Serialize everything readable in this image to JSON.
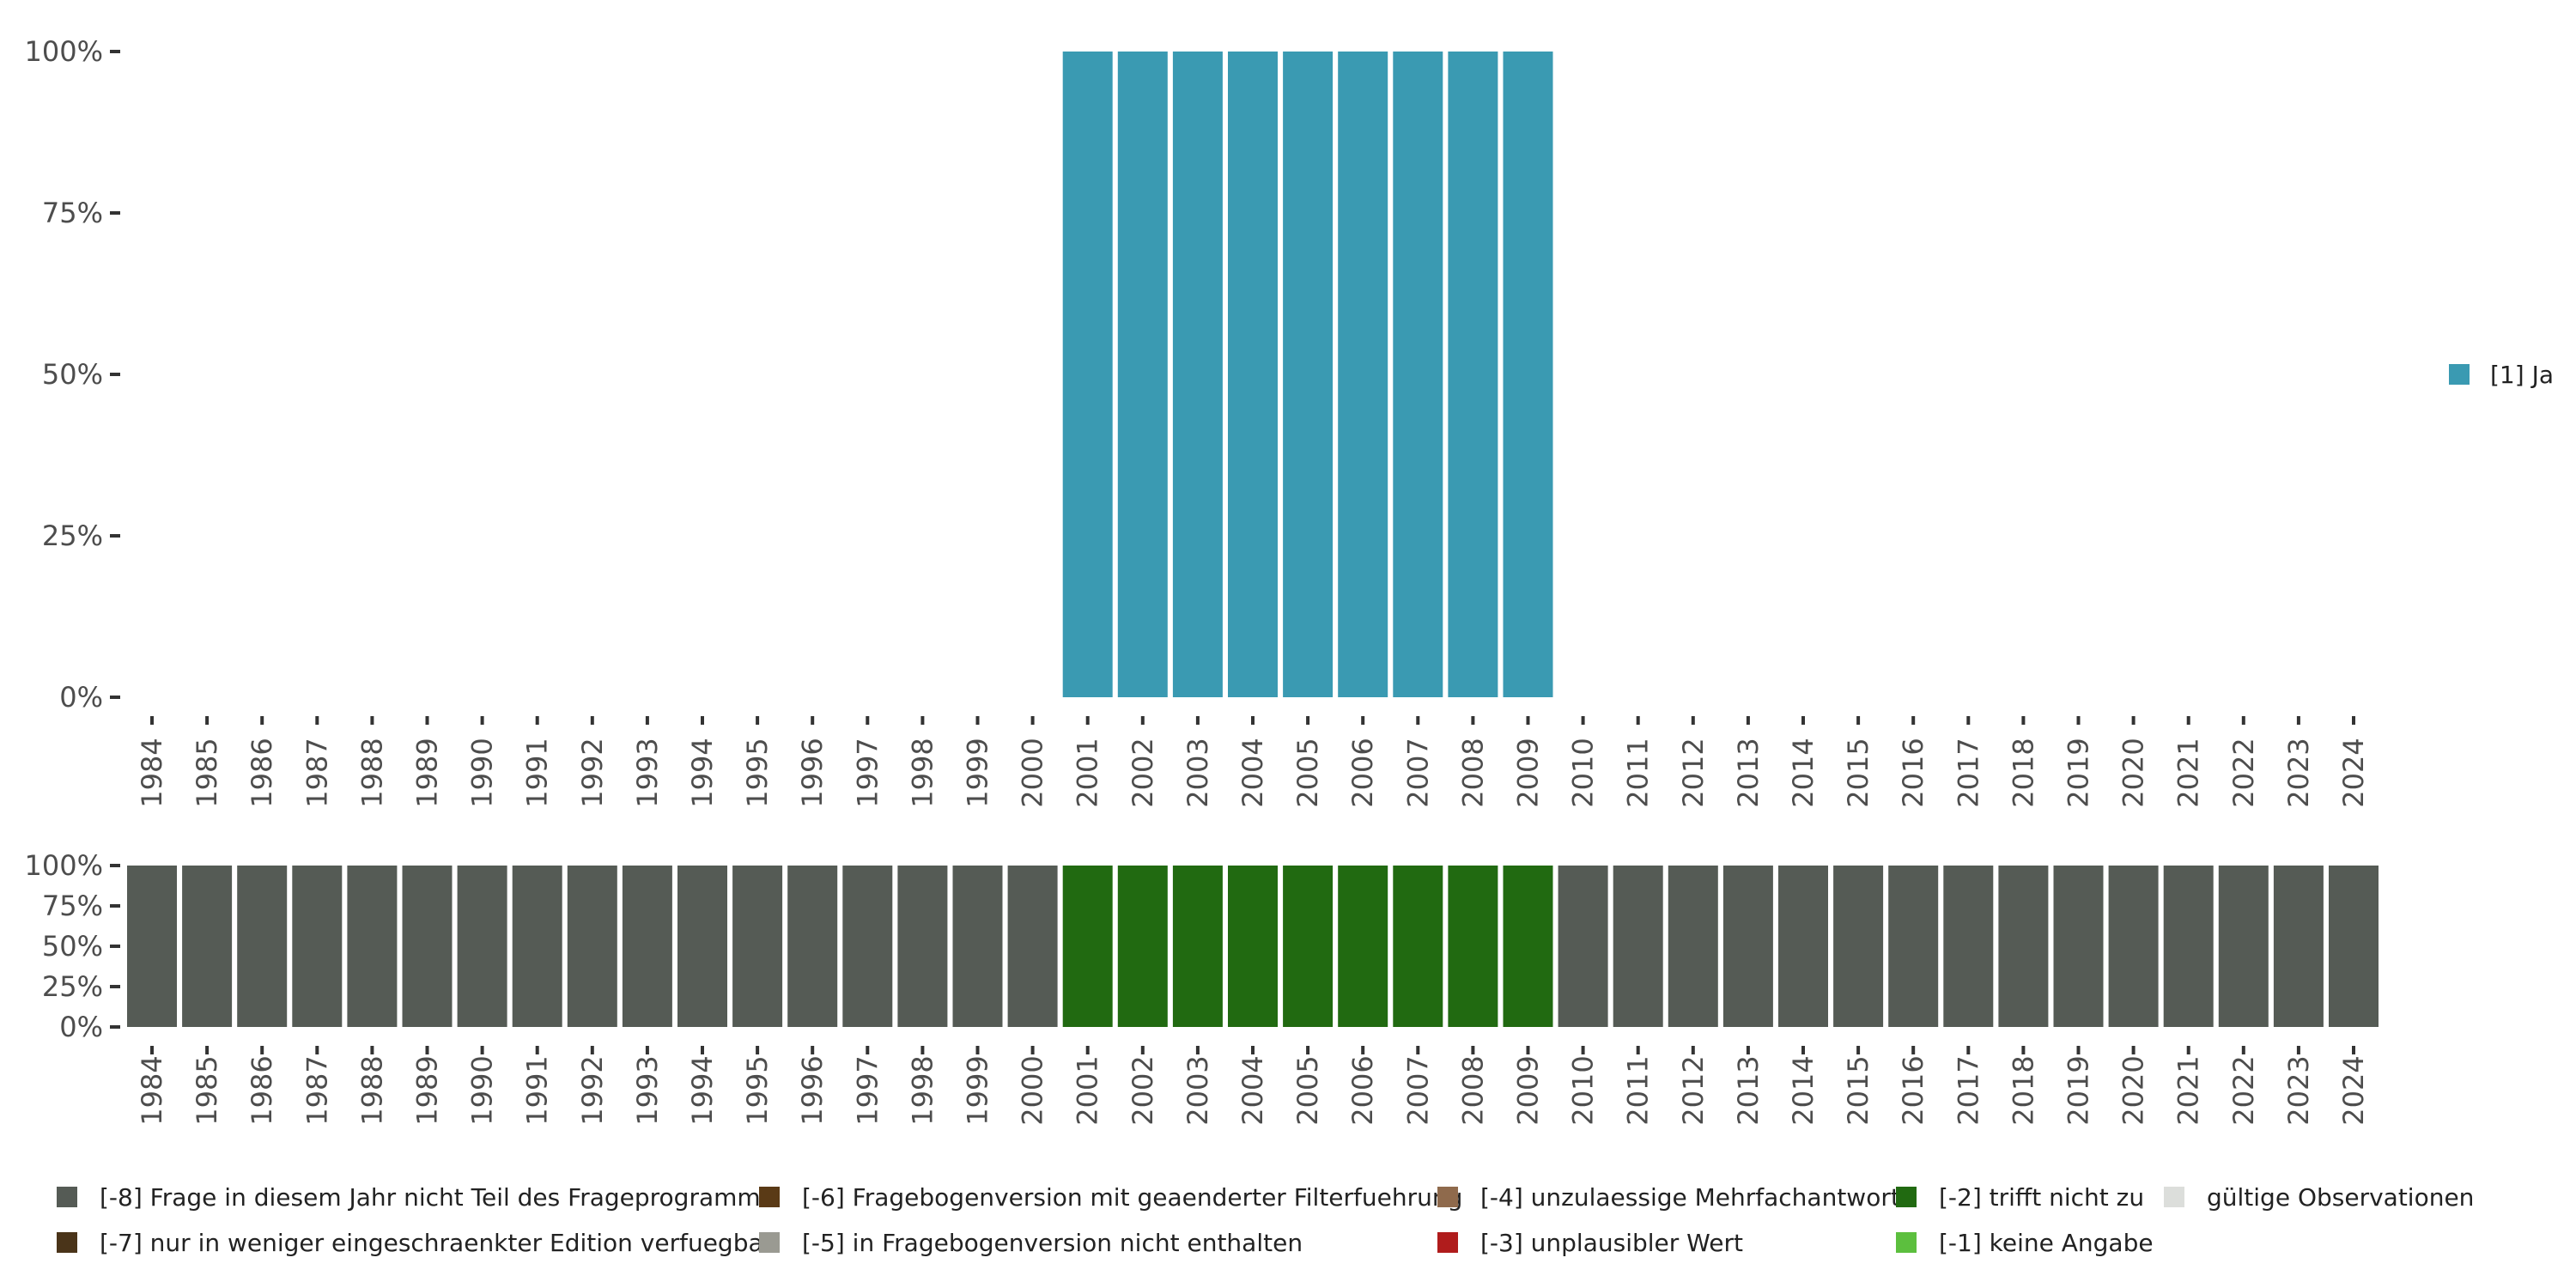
{
  "chart_data": [
    {
      "type": "bar",
      "stacked": true,
      "title": "",
      "xlabel": "",
      "ylabel": "",
      "ylim": [
        0,
        100
      ],
      "y_ticks": [
        "0%",
        "25%",
        "50%",
        "75%",
        "100%"
      ],
      "categories": [
        "1984",
        "1985",
        "1986",
        "1987",
        "1988",
        "1989",
        "1990",
        "1991",
        "1992",
        "1993",
        "1994",
        "1995",
        "1996",
        "1997",
        "1998",
        "1999",
        "2000",
        "2001",
        "2002",
        "2003",
        "2004",
        "2005",
        "2006",
        "2007",
        "2008",
        "2009",
        "2010",
        "2011",
        "2012",
        "2013",
        "2014",
        "2015",
        "2016",
        "2017",
        "2018",
        "2019",
        "2020",
        "2021",
        "2022",
        "2023",
        "2024"
      ],
      "series": [
        {
          "name": "[1] Ja",
          "color": "#3a9ab2",
          "values": [
            null,
            null,
            null,
            null,
            null,
            null,
            null,
            null,
            null,
            null,
            null,
            null,
            null,
            null,
            null,
            null,
            null,
            100,
            100,
            100,
            100,
            100,
            100,
            100,
            100,
            100,
            null,
            null,
            null,
            null,
            null,
            null,
            null,
            null,
            null,
            null,
            null,
            null,
            null,
            null,
            null
          ]
        }
      ],
      "legend": {
        "position": "right",
        "items": [
          {
            "label": "[1] Ja",
            "color": "#3a9ab2"
          }
        ]
      },
      "grid": false
    },
    {
      "type": "bar",
      "stacked": true,
      "title": "",
      "xlabel": "",
      "ylabel": "",
      "ylim": [
        0,
        100
      ],
      "y_ticks": [
        "0%",
        "25%",
        "50%",
        "75%",
        "100%"
      ],
      "categories": [
        "1984",
        "1985",
        "1986",
        "1987",
        "1988",
        "1989",
        "1990",
        "1991",
        "1992",
        "1993",
        "1994",
        "1995",
        "1996",
        "1997",
        "1998",
        "1999",
        "2000",
        "2001",
        "2002",
        "2003",
        "2004",
        "2005",
        "2006",
        "2007",
        "2008",
        "2009",
        "2010",
        "2011",
        "2012",
        "2013",
        "2014",
        "2015",
        "2016",
        "2017",
        "2018",
        "2019",
        "2020",
        "2021",
        "2022",
        "2023",
        "2024"
      ],
      "series": [
        {
          "name": "[-8] Frage in diesem Jahr nicht Teil des Frageprogramms",
          "color": "#555b55",
          "values": [
            100,
            100,
            100,
            100,
            100,
            100,
            100,
            100,
            100,
            100,
            100,
            100,
            100,
            100,
            100,
            100,
            100,
            0,
            0,
            0,
            0,
            0,
            0,
            0,
            0,
            0,
            100,
            100,
            100,
            100,
            100,
            100,
            100,
            100,
            100,
            100,
            100,
            100,
            100,
            100,
            100
          ]
        },
        {
          "name": "[-2] trifft nicht zu",
          "color": "#216a11",
          "values": [
            0,
            0,
            0,
            0,
            0,
            0,
            0,
            0,
            0,
            0,
            0,
            0,
            0,
            0,
            0,
            0,
            0,
            100,
            100,
            100,
            100,
            100,
            100,
            100,
            100,
            100,
            0,
            0,
            0,
            0,
            0,
            0,
            0,
            0,
            0,
            0,
            0,
            0,
            0,
            0,
            0
          ]
        }
      ],
      "legend": {
        "position": "bottom",
        "items": [
          {
            "label": "[-8] Frage in diesem Jahr nicht Teil des Frageprogramms",
            "color": "#555b55"
          },
          {
            "label": "[-7] nur in weniger eingeschraenkter Edition verfuegbar",
            "color": "#4a3419"
          },
          {
            "label": "[-6] Fragebogenversion mit geaenderter Filterfuehrung",
            "color": "#5a3a16"
          },
          {
            "label": "[-5] in Fragebogenversion nicht enthalten",
            "color": "#9a9a92"
          },
          {
            "label": "[-4] unzulaessige Mehrfachantwort",
            "color": "#8f6a4c"
          },
          {
            "label": "[-3] unplausibler Wert",
            "color": "#b01c1c"
          },
          {
            "label": "[-2] trifft nicht zu",
            "color": "#216a11"
          },
          {
            "label": "[-1] keine Angabe",
            "color": "#5cbf3e"
          },
          {
            "label": "gültige Observationen",
            "color": "#dcdedb"
          }
        ]
      },
      "grid": false
    }
  ]
}
